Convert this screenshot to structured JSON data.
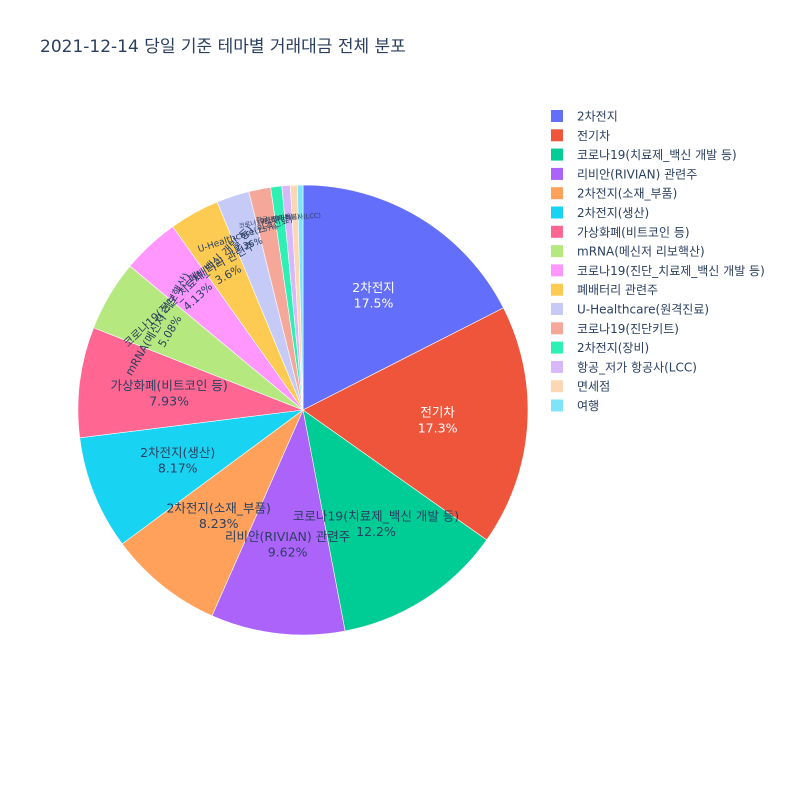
{
  "chart_data": {
    "type": "pie",
    "title": "2021-12-14 당일 기준 테마별 거래대금 전체 분포",
    "legend_position": "right",
    "sort": "descending",
    "direction": "clockwise",
    "slices": [
      {
        "label": "2차전지",
        "percent": 17.5,
        "percent_text": "17.5%",
        "color": "#636efa"
      },
      {
        "label": "전기차",
        "percent": 17.3,
        "percent_text": "17.3%",
        "color": "#EF553B"
      },
      {
        "label": "코로나19(치료제_백신 개발 등)",
        "percent": 12.2,
        "percent_text": "12.2%",
        "color": "#00cc96"
      },
      {
        "label": "리비안(RIVIAN) 관련주",
        "percent": 9.62,
        "percent_text": "9.62%",
        "color": "#ab63fa"
      },
      {
        "label": "2차전지(소재_부품)",
        "percent": 8.23,
        "percent_text": "8.23%",
        "color": "#FFA15A"
      },
      {
        "label": "2차전지(생산)",
        "percent": 8.17,
        "percent_text": "8.17%",
        "color": "#19d3f3"
      },
      {
        "label": "가상화폐(비트코인 등)",
        "percent": 7.93,
        "percent_text": "7.93%",
        "color": "#FF6692"
      },
      {
        "label": "mRNA(메신저 리보핵산)",
        "percent": 5.08,
        "percent_text": "5.08%",
        "color": "#B6E880"
      },
      {
        "label": "코로나19(진단_치료제_백신 개발 등)",
        "percent": 4.13,
        "percent_text": "4.13%",
        "color": "#FF97FF"
      },
      {
        "label": "폐배터리 관련주",
        "percent": 3.6,
        "percent_text": "3.6%",
        "color": "#FECB52"
      },
      {
        "label": "U-Healthcare(원격진료)",
        "percent": 2.36,
        "percent_text": "2.36%",
        "color": "#c6caf7"
      },
      {
        "label": "코로나19(진단키트)",
        "percent": 1.57,
        "percent_text": "1.57%",
        "color": "#f5a89a"
      },
      {
        "label": "2차전지(장비)",
        "percent": 0.8,
        "percent_text": "",
        "color": "#2ef0b5"
      },
      {
        "label": "항공_저가 항공사(LCC)",
        "percent": 0.6,
        "percent_text": "",
        "color": "#d7b9fb"
      },
      {
        "label": "면세점",
        "percent": 0.5,
        "percent_text": "",
        "color": "#fdd7b3"
      },
      {
        "label": "여행",
        "percent": 0.4,
        "percent_text": "",
        "color": "#7ee4f7"
      }
    ]
  }
}
